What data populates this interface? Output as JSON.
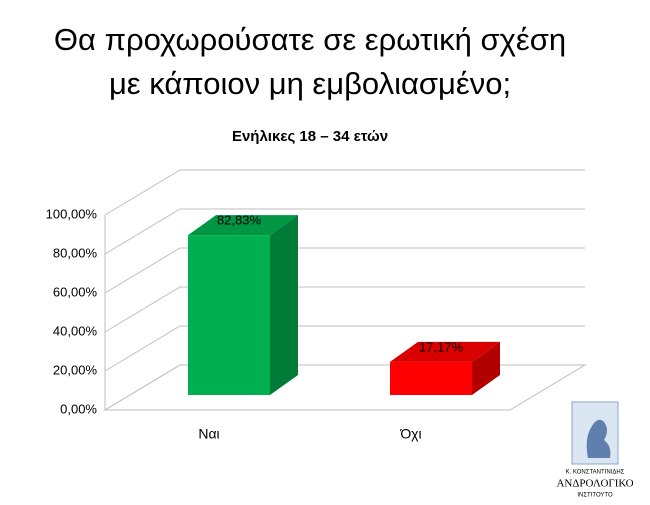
{
  "chart_data": {
    "type": "bar3d",
    "title": [
      "Θα προχωρούσατε σε ερωτική σχέση",
      "με κάποιον μη εμβολιασμένο;"
    ],
    "subtitle": "Ενήλικες 18 – 34 ετών",
    "categories": [
      "Ναι",
      "Όχι"
    ],
    "values": [
      82.83,
      17.17
    ],
    "value_labels": [
      "82,83%",
      "17,17%"
    ],
    "colors": [
      "#00b050",
      "#ff0000"
    ],
    "ylim": [
      0,
      100
    ],
    "yticks": [
      {
        "value": 0,
        "label": "0,00%"
      },
      {
        "value": 20,
        "label": "20,00%"
      },
      {
        "value": 40,
        "label": "40,00%"
      },
      {
        "value": 60,
        "label": "60,00%"
      },
      {
        "value": 80,
        "label": "80,00%"
      },
      {
        "value": 100,
        "label": "100,00%"
      }
    ],
    "grid": true
  },
  "logo": {
    "lines": [
      "Κ. ΚΟΝΣΤΑΝΤΙΝΙΔΗΣ",
      "ΑΝΔΡΟΛΟΓΙΚΟ",
      "ΙΝΣΤΙΤΟΥΤΟ"
    ]
  }
}
